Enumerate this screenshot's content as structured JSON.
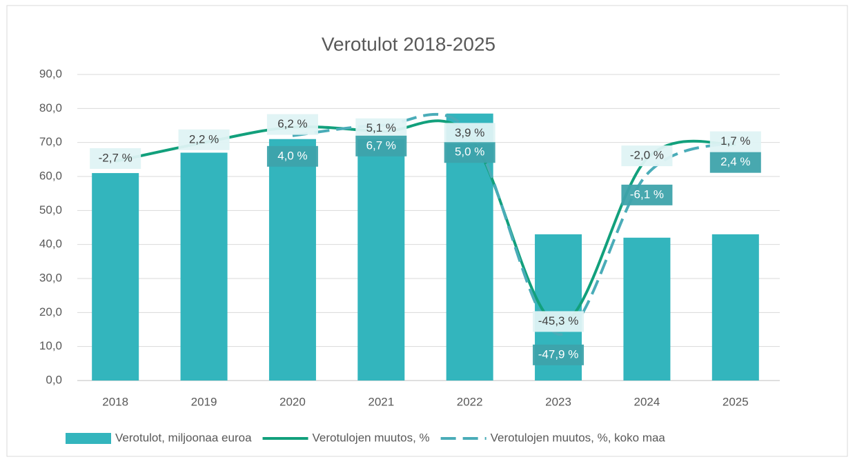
{
  "chart_data": {
    "type": "bar_line",
    "title": "Verotulot 2018-2025",
    "categories": [
      "2018",
      "2019",
      "2020",
      "2021",
      "2022",
      "2023",
      "2024",
      "2025"
    ],
    "ylim": [
      0,
      90
    ],
    "yticks": [
      {
        "value": 0,
        "label": "0,0"
      },
      {
        "value": 10,
        "label": "10,0"
      },
      {
        "value": 20,
        "label": "20,0"
      },
      {
        "value": 30,
        "label": "30,0"
      },
      {
        "value": 40,
        "label": "40,0"
      },
      {
        "value": 50,
        "label": "50,0"
      },
      {
        "value": 60,
        "label": "60,0"
      },
      {
        "value": 70,
        "label": "70,0"
      },
      {
        "value": 80,
        "label": "80,0"
      },
      {
        "value": 90,
        "label": "90,0"
      }
    ],
    "y2lim": [
      -60,
      20
    ],
    "grid": true,
    "legend": "bottom",
    "series": [
      {
        "name": "Verotulot, miljoonaa euroa",
        "type": "bar",
        "color": "#33b5bd",
        "values": [
          61,
          67,
          71,
          72,
          78.5,
          43,
          42,
          43
        ]
      },
      {
        "name": "Verotulojen muutos, %",
        "type": "line",
        "axis": "y2",
        "color": "#12a07c",
        "dash": false,
        "values": [
          -2.7,
          2.2,
          6.2,
          5.1,
          3.9,
          -45.3,
          -2.0,
          1.7
        ],
        "value_labels": [
          "-2,7 %",
          "2,2 %",
          "6,2 %",
          "5,1 %",
          "3,9 %",
          "-45,3 %",
          "-2,0 %",
          "1,7 %"
        ]
      },
      {
        "name": "Verotulojen muutos, %, koko maa",
        "type": "line",
        "axis": "y2",
        "color": "#4aacb8",
        "dash": true,
        "values": [
          null,
          null,
          4.0,
          6.7,
          5.0,
          -47.9,
          -6.1,
          2.4
        ],
        "value_labels": [
          null,
          null,
          "4,0 %",
          "6,7 %",
          "5,0 %",
          "-47,9 %",
          "-6,1 %",
          "2,4 %"
        ]
      }
    ]
  }
}
